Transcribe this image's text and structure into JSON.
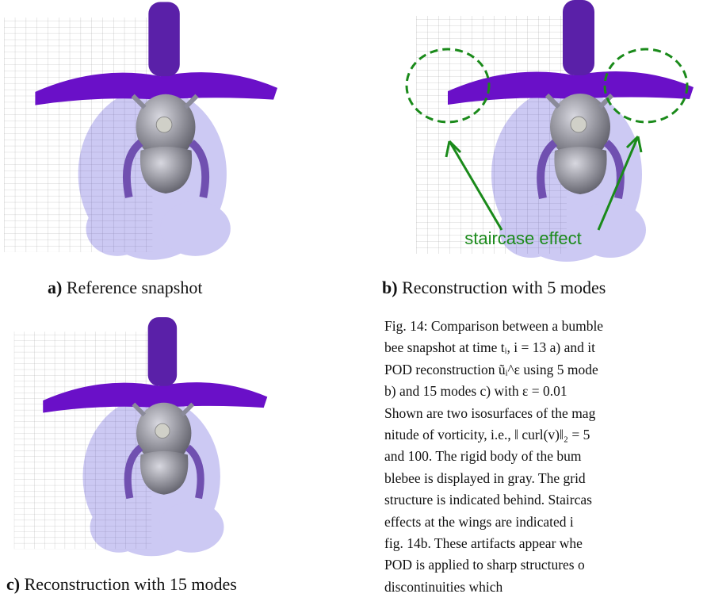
{
  "panels": [
    {
      "label": "a)",
      "text": "Reference snapshot"
    },
    {
      "label": "b)",
      "text": "Reconstruction with 5 modes",
      "annotation": "staircase effect"
    },
    {
      "label": "c)",
      "text": "Reconstruction with 15 modes"
    }
  ],
  "caption": {
    "lines": [
      "Fig. 14: Comparison between a bumble",
      "bee snapshot at time tᵢ, i = 13 a) and it",
      "POD reconstruction ũᵢ^ε using 5 mode",
      "b) and 15 modes c) with ε = 0.01",
      "Shown are two isosurfaces of the mag",
      "nitude of vorticity, i.e., ‖ curl(v)‖₂ = 5",
      "and 100. The rigid body of the bum",
      "blebee is displayed in gray. The grid",
      "structure is indicated behind. Staircas",
      "effects at the wings are indicated i",
      "fig. 14b. These artifacts appear whe",
      "POD is applied to sharp structures o",
      "discontinuities which"
    ]
  }
}
